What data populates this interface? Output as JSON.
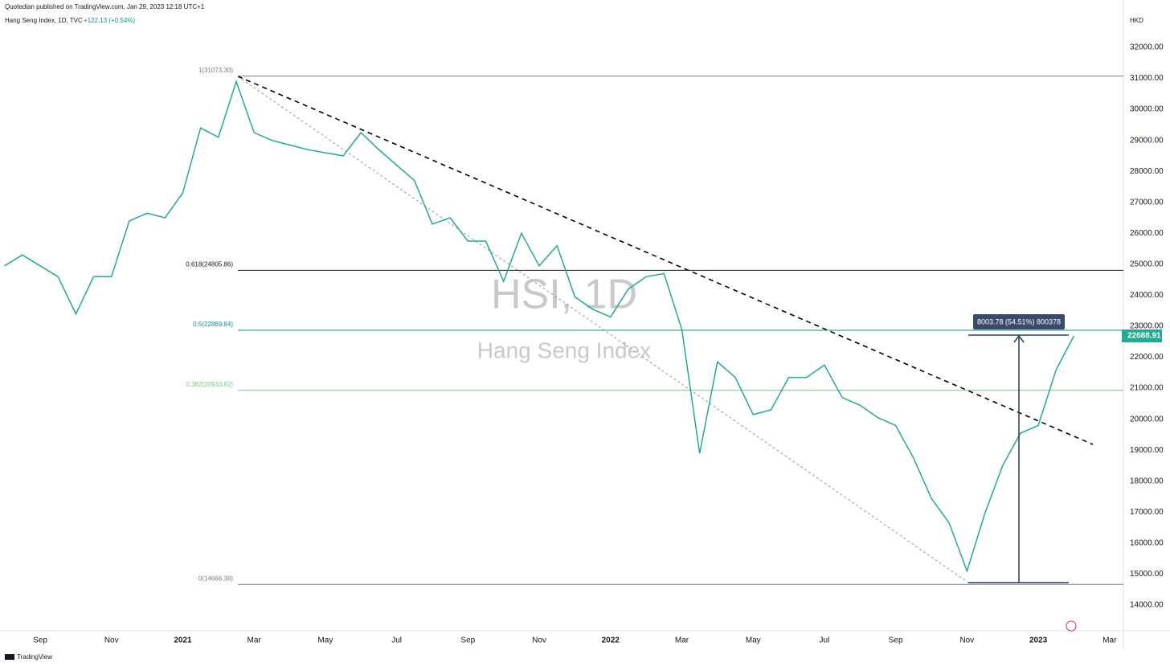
{
  "header": {
    "published": "Quotedian published on TradingView.com, Jan 29, 2023 12:18 UTC+1",
    "symbol": "Hang Seng Index, 1D, TVC",
    "change": "+122.13 (+0.54%)",
    "currency": "HKD",
    "watermark_symbol": "HSI, 1D",
    "watermark_name": "Hang Seng Index",
    "footer": "TradingView"
  },
  "chart_data": {
    "type": "line",
    "categories": [
      null,
      null,
      "Sep",
      null,
      null,
      null,
      "Nov",
      null,
      null,
      null,
      "2021",
      null,
      null,
      null,
      "Mar",
      null,
      null,
      null,
      "May",
      null,
      null,
      null,
      "Jul",
      null,
      null,
      null,
      "Sep",
      null,
      null,
      null,
      "Nov",
      null,
      null,
      null,
      "2022",
      null,
      null,
      null,
      "Mar",
      null,
      null,
      null,
      "May",
      null,
      null,
      null,
      "Jul",
      null,
      null,
      null,
      "Sep",
      null,
      null,
      null,
      "Nov",
      null,
      null,
      null,
      "2023",
      null,
      null,
      null,
      "Mar"
    ],
    "series": [
      {
        "name": "Hang Seng Index",
        "color": "#22ab94",
        "values": [
          24950,
          25300,
          24950,
          24600,
          23400,
          24600,
          24600,
          26400,
          26650,
          26500,
          27300,
          29400,
          29100,
          30900,
          29250,
          29000,
          28850,
          28700,
          28600,
          28500,
          29250,
          28700,
          28200,
          27700,
          26300,
          26500,
          25750,
          25750,
          24450,
          26000,
          24950,
          25600,
          23950,
          23550,
          23300,
          24200,
          24600,
          24700,
          22900,
          18900,
          21850,
          21350,
          20150,
          20300,
          21350,
          21350,
          21750,
          20700,
          20450,
          20050,
          19800,
          18750,
          17450,
          16650,
          15100,
          16950,
          18500,
          19550,
          19800,
          21600,
          22688.91,
          null,
          null
        ]
      }
    ],
    "ylim": [
      13170,
      33530
    ],
    "yticks": [
      {
        "value": 14000,
        "label": "14000.00"
      },
      {
        "value": 15000,
        "label": "15000.00"
      },
      {
        "value": 16000,
        "label": "16000.00"
      },
      {
        "value": 17000,
        "label": "17000.00"
      },
      {
        "value": 18000,
        "label": "18000.00"
      },
      {
        "value": 19000,
        "label": "19000.00"
      },
      {
        "value": 20000,
        "label": "20000.00"
      },
      {
        "value": 21000,
        "label": "21000.00"
      },
      {
        "value": 22000,
        "label": "22000.00"
      },
      {
        "value": 23000,
        "label": "23000.00"
      },
      {
        "value": 24000,
        "label": "24000.00"
      },
      {
        "value": 25000,
        "label": "25000.00"
      },
      {
        "value": 26000,
        "label": "26000.00"
      },
      {
        "value": 27000,
        "label": "27000.00"
      },
      {
        "value": 28000,
        "label": "28000.00"
      },
      {
        "value": 29000,
        "label": "29000.00"
      },
      {
        "value": 30000,
        "label": "30000.00"
      },
      {
        "value": 31000,
        "label": "31000.00"
      },
      {
        "value": 32000,
        "label": "32000.00"
      }
    ],
    "grid": false,
    "fib_levels": [
      {
        "label": "1(31073.30)",
        "value": 31073.3,
        "color": "#787b86"
      },
      {
        "label": "0.618(24805.86)",
        "value": 24805.86,
        "color": "#131722"
      },
      {
        "label": "0.5(22869.84)",
        "value": 22869.84,
        "color": "#089981"
      },
      {
        "label": "0.382(20933.82)",
        "value": 20933.82,
        "color": "#81c784"
      },
      {
        "label": "0(14666.38)",
        "value": 14666.38,
        "color": "#787b86"
      }
    ],
    "measure_label": "8003.78 (54.51%) 800378"
  }
}
